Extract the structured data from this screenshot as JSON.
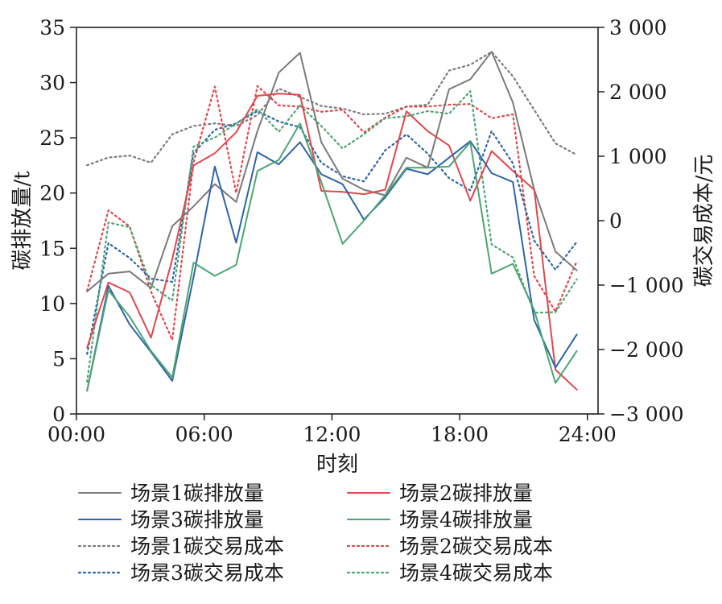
{
  "chart_data": {
    "type": "line",
    "xlabel": "时刻",
    "ylabel_left": "碳排放量/t",
    "ylabel_right": "碳交易成本/元",
    "x_ticks": [
      {
        "value": 0,
        "label": "00:00"
      },
      {
        "value": 6,
        "label": "06:00"
      },
      {
        "value": 12,
        "label": "12:00"
      },
      {
        "value": 18,
        "label": "18:00"
      },
      {
        "value": 24,
        "label": "24:00"
      }
    ],
    "xlim": [
      0,
      24.5
    ],
    "left_axis": {
      "ylim": [
        0,
        35
      ],
      "ticks": [
        {
          "value": 0,
          "label": "0"
        },
        {
          "value": 5,
          "label": "5"
        },
        {
          "value": 10,
          "label": "10"
        },
        {
          "value": 15,
          "label": "15"
        },
        {
          "value": 20,
          "label": "20"
        },
        {
          "value": 25,
          "label": "25"
        },
        {
          "value": 30,
          "label": "30"
        },
        {
          "value": 35,
          "label": "35"
        }
      ]
    },
    "right_axis": {
      "ylim": [
        -3000,
        3000
      ],
      "ticks": [
        {
          "value": -3000,
          "label": "−3 000"
        },
        {
          "value": -2000,
          "label": "−2 000"
        },
        {
          "value": -1000,
          "label": "−1 000"
        },
        {
          "value": 0,
          "label": "0"
        },
        {
          "value": 1000,
          "label": "1 000"
        },
        {
          "value": 2000,
          "label": "2 000"
        },
        {
          "value": 3000,
          "label": "3 000"
        }
      ]
    },
    "x": [
      0.5,
      1.5,
      2.5,
      3.5,
      4.5,
      5.5,
      6.5,
      7.5,
      8.5,
      9.5,
      10.5,
      11.5,
      12.5,
      13.5,
      14.5,
      15.5,
      16.5,
      17.5,
      18.5,
      19.5,
      20.5,
      21.5,
      22.5,
      23.5
    ],
    "series": [
      {
        "name": "场景1碳排放量",
        "axis": "left",
        "style": "solid",
        "color": "#7a7a7a",
        "values": [
          11.1,
          12.7,
          12.9,
          11.4,
          17.0,
          18.8,
          20.8,
          19.2,
          25.6,
          30.9,
          32.7,
          24.6,
          21.3,
          20.3,
          19.8,
          23.2,
          22.3,
          29.4,
          30.3,
          32.8,
          28.2,
          20.3,
          14.7,
          13.0
        ]
      },
      {
        "name": "场景2碳排放量",
        "axis": "left",
        "style": "solid",
        "color": "#e0474c",
        "values": [
          6.0,
          11.9,
          11.0,
          6.9,
          14.0,
          22.5,
          23.6,
          25.5,
          28.8,
          29.0,
          28.9,
          20.2,
          20.1,
          19.9,
          20.3,
          27.4,
          25.6,
          24.3,
          19.3,
          23.8,
          22.0,
          20.3,
          4.0,
          2.2
        ]
      },
      {
        "name": "场景3碳排放量",
        "axis": "left",
        "style": "solid",
        "color": "#2e64a8",
        "values": [
          2.1,
          11.6,
          8.1,
          5.6,
          3.0,
          12.4,
          22.4,
          15.5,
          23.7,
          22.6,
          24.6,
          21.7,
          20.8,
          17.6,
          19.6,
          22.2,
          21.7,
          23.2,
          24.7,
          21.8,
          21.0,
          8.5,
          4.2,
          7.2
        ]
      },
      {
        "name": "场景4碳排放量",
        "axis": "left",
        "style": "solid",
        "color": "#4aa673",
        "values": [
          2.1,
          11.2,
          8.8,
          5.7,
          3.3,
          13.7,
          12.5,
          13.5,
          22.0,
          23.0,
          26.3,
          21.0,
          15.4,
          17.5,
          19.8,
          22.3,
          22.3,
          22.4,
          24.6,
          12.7,
          13.6,
          9.4,
          2.8,
          5.7
        ]
      },
      {
        "name": "场景1碳交易成本",
        "axis": "right",
        "style": "dotted",
        "color": "#7a7a7a",
        "values": [
          860,
          980,
          1010,
          900,
          1340,
          1470,
          1510,
          1470,
          1640,
          2050,
          1920,
          1780,
          1740,
          1650,
          1660,
          1770,
          1800,
          2330,
          2420,
          2620,
          2240,
          1720,
          1200,
          1020
        ]
      },
      {
        "name": "场景2碳交易成本",
        "axis": "right",
        "style": "dotted",
        "color": "#e0474c",
        "values": [
          -1090,
          160,
          -90,
          -1100,
          -1850,
          910,
          2080,
          430,
          2090,
          1790,
          1770,
          1690,
          1720,
          1370,
          1600,
          1770,
          1770,
          1800,
          1810,
          1590,
          1650,
          -860,
          -1410,
          -630
        ]
      },
      {
        "name": "场景3碳交易成本",
        "axis": "right",
        "style": "dotted",
        "color": "#2e64a8",
        "values": [
          -2070,
          -350,
          -580,
          -900,
          -950,
          1050,
          1410,
          1510,
          1700,
          1540,
          1450,
          900,
          690,
          610,
          1090,
          1340,
          1040,
          660,
          470,
          1390,
          890,
          -310,
          -760,
          -330
        ]
      },
      {
        "name": "场景4碳交易成本",
        "axis": "right",
        "style": "dotted",
        "color": "#4aa673",
        "values": [
          -2500,
          -30,
          -100,
          -1000,
          -1240,
          1150,
          1290,
          1510,
          1730,
          1380,
          1790,
          1470,
          1120,
          1340,
          1590,
          1620,
          1700,
          1660,
          2010,
          -370,
          -570,
          -1430,
          -1420,
          -910
        ]
      }
    ],
    "legend": {
      "placement": "bottom",
      "columns": 2
    },
    "grid": false
  }
}
